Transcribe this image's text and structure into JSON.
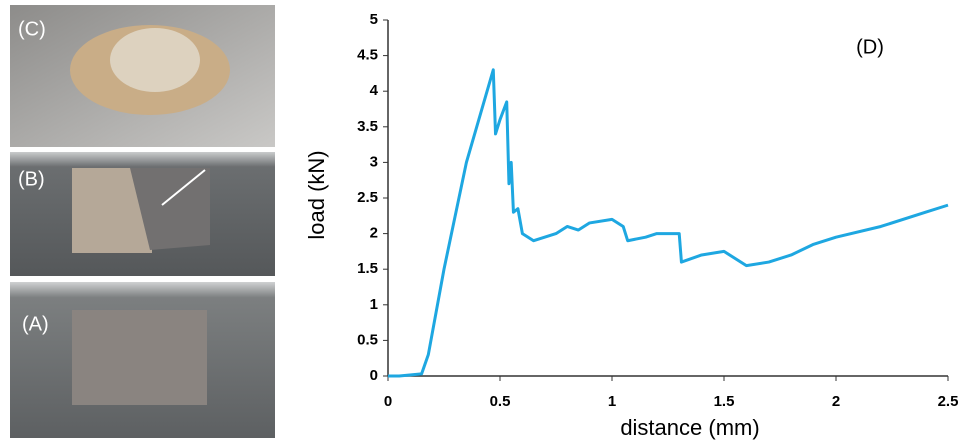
{
  "panels": [
    {
      "label": "(C)"
    },
    {
      "label": "(B)"
    },
    {
      "label": "(A)"
    }
  ],
  "chart_data": {
    "type": "line",
    "title": "(D)",
    "x_label": "distance (mm)",
    "y_label": "load (kN)",
    "x": [
      0,
      0.05,
      0.15,
      0.18,
      0.25,
      0.35,
      0.47,
      0.48,
      0.5,
      0.53,
      0.54,
      0.55,
      0.56,
      0.58,
      0.6,
      0.65,
      0.75,
      0.8,
      0.85,
      0.9,
      1.0,
      1.05,
      1.07,
      1.15,
      1.2,
      1.3,
      1.31,
      1.4,
      1.5,
      1.6,
      1.7,
      1.8,
      1.9,
      2.0,
      2.2,
      2.4,
      2.5
    ],
    "values": [
      0,
      0,
      0.03,
      0.3,
      1.5,
      3,
      4.3,
      3.4,
      3.6,
      3.85,
      2.7,
      3.0,
      2.3,
      2.35,
      2.0,
      1.9,
      2.0,
      2.1,
      2.05,
      2.15,
      2.2,
      2.1,
      1.9,
      1.95,
      2.0,
      2.0,
      1.6,
      1.7,
      1.75,
      1.55,
      1.6,
      1.7,
      1.85,
      1.95,
      2.1,
      2.3,
      2.4
    ],
    "color": "#1ea7e1",
    "xlim": [
      0,
      2.5
    ],
    "ylim": [
      0,
      5
    ],
    "xticks": [
      0,
      0.5,
      1,
      1.5,
      2,
      2.5
    ],
    "yticks": [
      0,
      0.5,
      1,
      1.5,
      2,
      2.5,
      3,
      3.5,
      4,
      4.5,
      5
    ]
  }
}
